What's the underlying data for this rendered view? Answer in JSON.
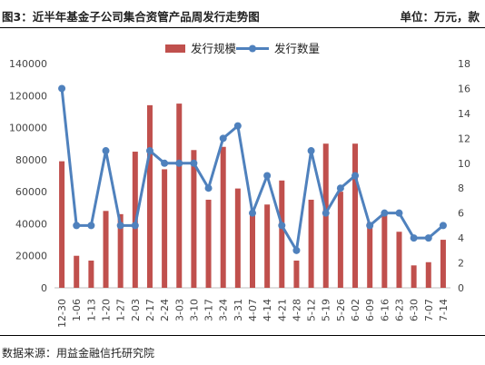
{
  "header": {
    "title": "图3：近半年基金子公司集合资管产品周发行走势图",
    "unit": "单位：万元，款"
  },
  "footer": {
    "source": "数据来源：用益金融信托研究院"
  },
  "colors": {
    "bar": "#c0504d",
    "line": "#4f81bd"
  },
  "chart_data": {
    "type": "bar",
    "categories": [
      "12-30",
      "1-06",
      "1-13",
      "1-20",
      "1-27",
      "2-03",
      "2-17",
      "2-24",
      "3-03",
      "3-10",
      "3-17",
      "3-24",
      "3-31",
      "4-07",
      "4-14",
      "4-21",
      "4-28",
      "5-12",
      "5-19",
      "5-26",
      "6-02",
      "6-09",
      "6-16",
      "6-23",
      "6-30",
      "7-07",
      "7-14"
    ],
    "series": [
      {
        "name": "发行规模",
        "type": "bar",
        "axis": "left",
        "values": [
          79000,
          20000,
          17000,
          48000,
          46000,
          85000,
          114000,
          74000,
          115000,
          86000,
          55000,
          88000,
          62000,
          46000,
          52000,
          67000,
          17000,
          55000,
          90000,
          60000,
          90000,
          41000,
          48000,
          35000,
          14000,
          16000,
          30000
        ]
      },
      {
        "name": "发行数量",
        "type": "line",
        "axis": "right",
        "values": [
          16,
          5,
          5,
          11,
          5,
          5,
          11,
          10,
          10,
          10,
          8,
          12,
          13,
          6,
          9,
          5,
          3,
          11,
          6,
          8,
          9,
          5,
          6,
          6,
          4,
          4,
          5
        ]
      }
    ],
    "left_axis": {
      "ylim": [
        0,
        140000
      ],
      "ticks": [
        "0",
        "20000",
        "40000",
        "60000",
        "80000",
        "100000",
        "120000",
        "140000"
      ]
    },
    "right_axis": {
      "ylim": [
        0,
        18
      ],
      "ticks": [
        "0",
        "2",
        "4",
        "6",
        "8",
        "10",
        "12",
        "14",
        "16",
        "18"
      ]
    },
    "grid": false,
    "legend_position": "top-center"
  }
}
